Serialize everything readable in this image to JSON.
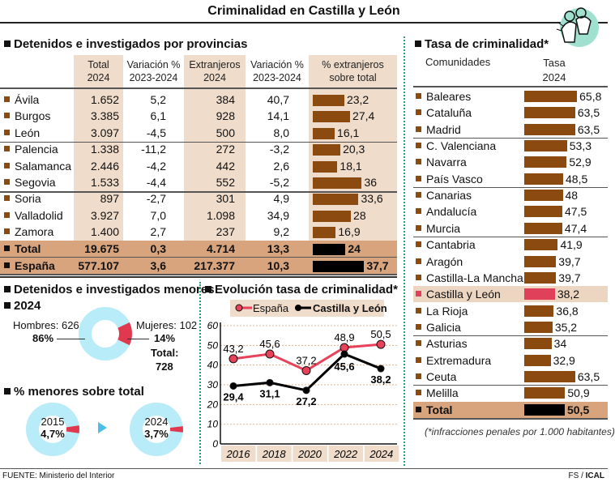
{
  "title": "Criminalidad en Castilla y León",
  "provinces": {
    "heading": "Detenidos e investigados por provincias",
    "columns": [
      [
        "Total",
        "2024"
      ],
      [
        "Variación %",
        "2023-2024"
      ],
      [
        "Extranjeros",
        "2024"
      ],
      [
        "Variación %",
        "2023-2024"
      ],
      [
        "% extranjeros",
        "sobre total"
      ]
    ],
    "rows": [
      {
        "name": "Ávila",
        "total": "1.652",
        "var_total": "5,2",
        "extr": "384",
        "var_extr": "40,7",
        "pct": "23,2",
        "pct_value": 23.2
      },
      {
        "name": "Burgos",
        "total": "3.385",
        "var_total": "6,1",
        "extr": "928",
        "var_extr": "14,1",
        "pct": "27,4",
        "pct_value": 27.4
      },
      {
        "name": "León",
        "total": "3.097",
        "var_total": "-4,5",
        "extr": "500",
        "var_extr": "8,0",
        "pct": "16,1",
        "pct_value": 16.1
      },
      {
        "name": "Palencia",
        "total": "1.338",
        "var_total": "-11,2",
        "extr": "272",
        "var_extr": "-3,2",
        "pct": "20,3",
        "pct_value": 20.3
      },
      {
        "name": "Salamanca",
        "total": "2.446",
        "var_total": "-4,2",
        "extr": "442",
        "var_extr": "2,6",
        "pct": "18,1",
        "pct_value": 18.1
      },
      {
        "name": "Segovia",
        "total": "1.533",
        "var_total": "-4,4",
        "extr": "552",
        "var_extr": "-5,2",
        "pct": "36",
        "pct_value": 36
      },
      {
        "name": "Soria",
        "total": "897",
        "var_total": "-2,7",
        "extr": "301",
        "var_extr": "4,9",
        "pct": "33,6",
        "pct_value": 33.6
      },
      {
        "name": "Valladolid",
        "total": "3.927",
        "var_total": "7,0",
        "extr": "1.098",
        "var_extr": "34,9",
        "pct": "28",
        "pct_value": 28
      },
      {
        "name": "Zamora",
        "total": "1.400",
        "var_total": "2,7",
        "extr": "237",
        "var_extr": "9,2",
        "pct": "16,9",
        "pct_value": 16.9
      }
    ],
    "totals": [
      {
        "name": "Total",
        "total": "19.675",
        "var_total": "0,3",
        "extr": "4.714",
        "var_extr": "13,3",
        "pct": "24",
        "pct_value": 24
      },
      {
        "name": "España",
        "total": "577.107",
        "var_total": "3,6",
        "extr": "217.377",
        "var_extr": "10,3",
        "pct": "37,7",
        "pct_value": 37.7
      }
    ]
  },
  "minors": {
    "heading": "Detenidos e investigados menores",
    "year": "2024",
    "hombres_label": "Hombres: 626",
    "hombres_pct": "86%",
    "mujeres_label": "Mujeres: 102",
    "mujeres_pct": "14%",
    "total_label": "Total:",
    "total_value": "728",
    "mujeres_share": 14,
    "share_heading": "% menores sobre total",
    "share": [
      {
        "year": "2015",
        "pct_label": "4,7%",
        "value": 4.7
      },
      {
        "year": "2024",
        "pct_label": "3,7%",
        "value": 3.7
      }
    ]
  },
  "colors": {
    "bar": "#8b4a0f",
    "highlight_bar": "#e0405a",
    "donut_base": "#b9ecf9",
    "donut_accent": "#e0384f",
    "espana_line": "#e8415a",
    "cyl_line": "#000000",
    "beige": "#efdcca",
    "total_row": "#d7a47e"
  },
  "chart_data": {
    "type": "line",
    "title": "Evolución tasa de criminalidad*",
    "x": [
      "2016",
      "2018",
      "2020",
      "2022",
      "2024"
    ],
    "ylim": [
      0,
      60
    ],
    "yticks": [
      "0",
      "10",
      "20",
      "30",
      "40",
      "50",
      "60"
    ],
    "grid": true,
    "legend": "top",
    "series": [
      {
        "name": "España",
        "values": [
          43.2,
          45.6,
          37.2,
          48.9,
          50.5
        ],
        "labels": [
          "43,2",
          "45,6",
          "37,2",
          "48,9",
          "50,5"
        ]
      },
      {
        "name": "Castilla y León",
        "values": [
          29.4,
          31.1,
          27.2,
          45.6,
          38.2
        ],
        "labels": [
          "29,4",
          "31,1",
          "27,2",
          "45,6",
          "38,2"
        ]
      }
    ]
  },
  "communities": {
    "heading": "Tasa de criminalidad*",
    "col_name": "Comunidades",
    "col_rate": [
      "Tasa",
      "2024"
    ],
    "rows": [
      {
        "name": "Baleares",
        "label": "65,8",
        "value": 65.8
      },
      {
        "name": "Cataluña",
        "label": "63,5",
        "value": 63.5
      },
      {
        "name": "Madrid",
        "label": "63,5",
        "value": 63.5
      },
      {
        "name": "C. Valenciana",
        "label": "53,3",
        "value": 53.3
      },
      {
        "name": "Navarra",
        "label": "52,9",
        "value": 52.9
      },
      {
        "name": "País Vasco",
        "label": "48,5",
        "value": 48.5
      },
      {
        "name": "Canarias",
        "label": "48",
        "value": 48
      },
      {
        "name": "Andalucía",
        "label": "47,5",
        "value": 47.5
      },
      {
        "name": "Murcia",
        "label": "47,4",
        "value": 47.4
      },
      {
        "name": "Cantabria",
        "label": "41,9",
        "value": 41.9
      },
      {
        "name": "Aragón",
        "label": "39,7",
        "value": 39.7
      },
      {
        "name": "Castilla-La Mancha",
        "label": "39,7",
        "value": 39.7
      },
      {
        "name": "Castilla y León",
        "label": "38,2",
        "value": 38.2,
        "highlight": true
      },
      {
        "name": "La Rioja",
        "label": "36,8",
        "value": 36.8
      },
      {
        "name": "Galicia",
        "label": "35,2",
        "value": 35.2
      },
      {
        "name": "Asturias",
        "label": "34",
        "value": 34
      },
      {
        "name": "Extremadura",
        "label": "32,9",
        "value": 32.9
      },
      {
        "name": "Ceuta",
        "label": "63,5",
        "value": 63.5
      },
      {
        "name": "Melilla",
        "label": "50,9",
        "value": 50.9
      }
    ],
    "total": {
      "name": "Total",
      "label": "50,5",
      "value": 50.5
    },
    "note": "(*infracciones penales por 1.000 habitantes)"
  },
  "icon": "handcuffed-hands-icon",
  "footer": {
    "source": "FUENTE: Ministerio del Interior",
    "credit_prefix": "FS / ",
    "credit": "ICAL"
  }
}
